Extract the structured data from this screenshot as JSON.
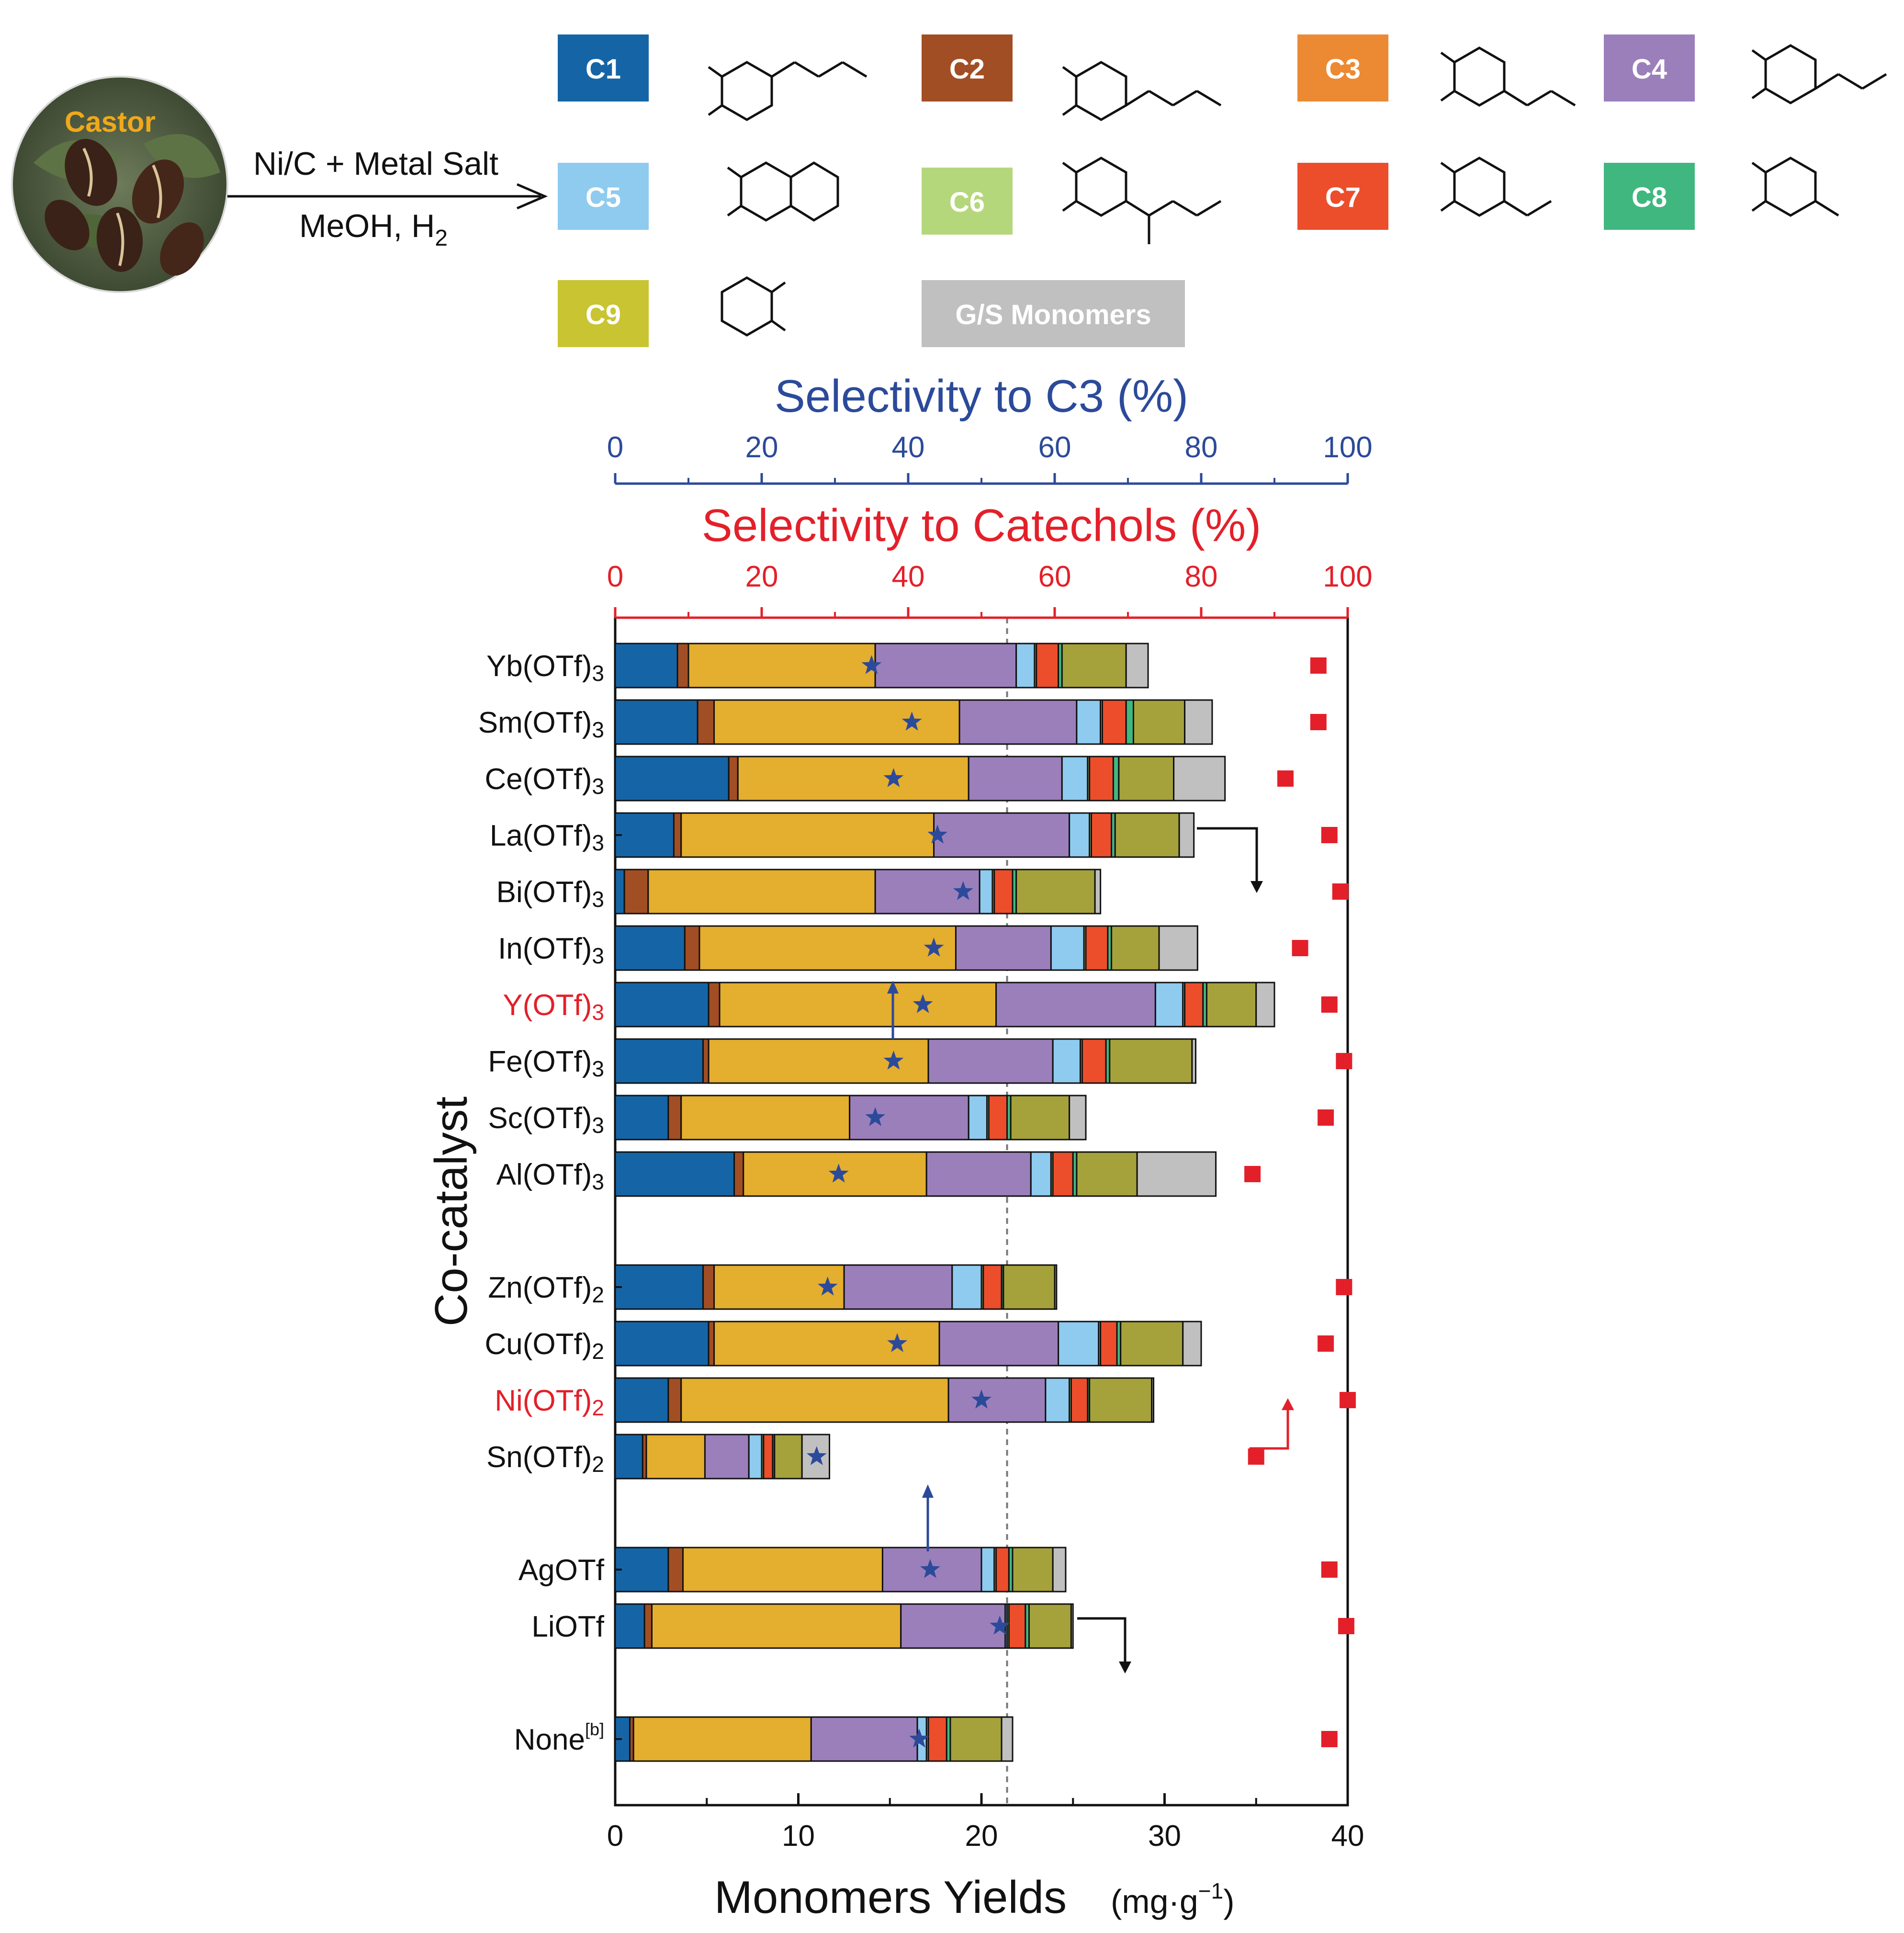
{
  "scheme": {
    "feedstock_label": "Castor",
    "reagents_top": "Ni/C + Metal Salt",
    "reagents_bottom_main": "MeOH, H",
    "reagents_bottom_sub": "2",
    "legend": [
      {
        "label": "C1",
        "color": "#1565a6",
        "text_color": "#ffffff"
      },
      {
        "label": "C2",
        "color": "#a24e24",
        "text_color": "#ffffff"
      },
      {
        "label": "C3",
        "color": "#ec8a34",
        "text_color": "#ffffff"
      },
      {
        "label": "C4",
        "color": "#9b7fbb",
        "text_color": "#ffffff"
      },
      {
        "label": "C5",
        "color": "#8ecbef",
        "text_color": "#ffffff"
      },
      {
        "label": "C6",
        "color": "#b5d77b",
        "text_color": "#ffffff"
      },
      {
        "label": "C7",
        "color": "#ec4e2b",
        "text_color": "#ffffff"
      },
      {
        "label": "C8",
        "color": "#41b780",
        "text_color": "#ffffff"
      },
      {
        "label": "C9",
        "color": "#c9c431",
        "text_color": "#ffffff"
      },
      {
        "label": "G/S Monomers",
        "color": "#c0c0c0",
        "text_color": "#ffffff"
      }
    ]
  },
  "chart_data": {
    "type": "bar",
    "orientation": "horizontal",
    "stacked": true,
    "xlabel": "Monomers Yields",
    "xlabel_unit": "(mg·g",
    "xlabel_unit_sup": "−1",
    "xlabel_unit_close": ")",
    "ylabel": "Co-catalyst",
    "xlim": [
      0,
      40
    ],
    "xticks": [
      0,
      10,
      20,
      30,
      40
    ],
    "top_axis_1": {
      "label": "Selectivity to C3 (%)",
      "lim": [
        0,
        100
      ],
      "ticks": [
        0,
        20,
        40,
        60,
        80,
        100
      ],
      "color": "#2c4a9a"
    },
    "top_axis_2": {
      "label": "Selectivity to Catechols (%)",
      "lim": [
        0,
        100
      ],
      "ticks": [
        0,
        20,
        40,
        60,
        80,
        100
      ],
      "color": "#e3202a"
    },
    "reference_line_yield": 21.4,
    "categories": [
      {
        "name": "Yb(OTf)",
        "sub": "3",
        "highlight": false
      },
      {
        "name": "Sm(OTf)",
        "sub": "3",
        "highlight": false
      },
      {
        "name": "Ce(OTf)",
        "sub": "3",
        "highlight": false
      },
      {
        "name": "La(OTf)",
        "sub": "3",
        "highlight": false
      },
      {
        "name": "Bi(OTf)",
        "sub": "3",
        "highlight": false
      },
      {
        "name": "In(OTf)",
        "sub": "3",
        "highlight": false
      },
      {
        "name": "Y(OTf)",
        "sub": "3",
        "highlight": true
      },
      {
        "name": "Fe(OTf)",
        "sub": "3",
        "highlight": false
      },
      {
        "name": "Sc(OTf)",
        "sub": "3",
        "highlight": false
      },
      {
        "name": "Al(OTf)",
        "sub": "3",
        "highlight": false
      },
      {
        "name": "Zn(OTf)",
        "sub": "2",
        "highlight": false
      },
      {
        "name": "Cu(OTf)",
        "sub": "2",
        "highlight": false
      },
      {
        "name": "Ni(OTf)",
        "sub": "2",
        "highlight": true
      },
      {
        "name": "Sn(OTf)",
        "sub": "2",
        "highlight": false
      },
      {
        "name": "AgOTf",
        "sub": "",
        "highlight": false
      },
      {
        "name": "LiOTf",
        "sub": "",
        "highlight": false
      },
      {
        "name": "None",
        "sup": "[b]",
        "highlight": false
      }
    ],
    "category_slots": [
      0,
      1,
      2,
      3,
      4,
      5,
      6,
      7,
      8,
      9,
      11,
      12,
      13,
      14,
      16,
      17,
      19
    ],
    "series": [
      {
        "name": "C1",
        "color": "#1565a6",
        "values": [
          3.4,
          4.5,
          6.2,
          3.2,
          0.5,
          3.8,
          5.1,
          4.8,
          2.9,
          6.5,
          4.8,
          5.1,
          2.9,
          1.5,
          2.9,
          1.6,
          0.8
        ]
      },
      {
        "name": "C2",
        "color": "#a24e24",
        "values": [
          0.6,
          0.9,
          0.5,
          0.4,
          1.3,
          0.8,
          0.6,
          0.3,
          0.7,
          0.5,
          0.6,
          0.3,
          0.7,
          0.2,
          0.8,
          0.4,
          0.2
        ]
      },
      {
        "name": "C3",
        "color": "#e4ae2e",
        "values": [
          10.2,
          13.4,
          12.6,
          13.8,
          12.4,
          14.0,
          15.1,
          12.0,
          9.2,
          10.0,
          7.1,
          12.3,
          14.6,
          3.2,
          10.9,
          13.6,
          9.7
        ]
      },
      {
        "name": "C4",
        "color": "#9b7fbb",
        "values": [
          7.7,
          6.4,
          5.1,
          7.4,
          5.7,
          5.2,
          8.7,
          6.8,
          6.5,
          5.7,
          5.9,
          6.5,
          5.3,
          2.4,
          5.4,
          5.7,
          5.8
        ]
      },
      {
        "name": "C5",
        "color": "#8ecbef",
        "values": [
          1.0,
          1.3,
          1.4,
          1.1,
          0.7,
          1.8,
          1.5,
          1.5,
          1.0,
          1.1,
          1.6,
          2.2,
          1.3,
          0.7,
          0.7,
          0.1,
          0.5
        ]
      },
      {
        "name": "C6",
        "color": "#b5d77b",
        "values": [
          0.1,
          0.1,
          0.1,
          0.1,
          0.1,
          0.1,
          0.1,
          0.1,
          0.1,
          0.1,
          0.1,
          0.1,
          0.1,
          0.1,
          0.1,
          0.1,
          0.1
        ]
      },
      {
        "name": "C7",
        "color": "#ec4e2b",
        "values": [
          1.2,
          1.3,
          1.3,
          1.1,
          1.0,
          1.2,
          1.0,
          1.3,
          1.0,
          1.1,
          1.0,
          0.9,
          0.9,
          0.5,
          0.7,
          0.9,
          1.0
        ]
      },
      {
        "name": "C8",
        "color": "#41b780",
        "values": [
          0.2,
          0.4,
          0.3,
          0.2,
          0.2,
          0.2,
          0.2,
          0.2,
          0.2,
          0.2,
          0.1,
          0.2,
          0.1,
          0.1,
          0.2,
          0.2,
          0.2
        ]
      },
      {
        "name": "C9",
        "color": "#a5a23c",
        "values": [
          3.5,
          2.8,
          3.0,
          3.5,
          4.3,
          2.6,
          2.7,
          4.5,
          3.2,
          3.3,
          2.8,
          3.4,
          3.4,
          1.5,
          2.2,
          2.3,
          2.8
        ]
      },
      {
        "name": "G/S Monomers",
        "color": "#c0c0c0",
        "values": [
          1.2,
          1.5,
          2.8,
          0.8,
          0.3,
          2.1,
          1.0,
          0.2,
          0.9,
          4.3,
          0.1,
          1.0,
          0.1,
          1.5,
          0.7,
          0.1,
          0.6
        ]
      }
    ],
    "selectivity_c3_star": [
      35.0,
      40.5,
      38.0,
      44.0,
      47.5,
      43.5,
      42.0,
      38.0,
      35.5,
      30.5,
      29.0,
      38.5,
      50.0,
      27.5,
      43.0,
      52.5,
      41.5
    ],
    "selectivity_catechols_square": [
      96.0,
      96.0,
      91.5,
      97.5,
      99.0,
      93.5,
      97.5,
      99.5,
      97.0,
      87.0,
      99.5,
      97.0,
      100.0,
      87.5,
      97.5,
      99.8,
      97.5
    ],
    "trend_arrows_count": 5
  }
}
